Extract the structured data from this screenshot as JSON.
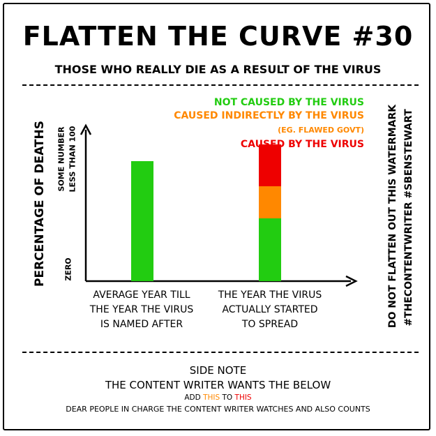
{
  "title": "FLATTEN THE CURVE #30",
  "subtitle": "THOSE WHO REALLY DIE AS A RESULT OF THE VIRUS",
  "legend": {
    "not_caused": "NOT CAUSED BY THE VIRUS",
    "indirect": "CAUSED INDIRECTLY BY THE VIRUS",
    "indirect_example": "(EG. FLAWED GOVT)",
    "caused": "CAUSED BY THE VIRUS"
  },
  "watermark": {
    "line1": "DO NOT FLATTEN OUT THIS WATERMARK",
    "line2": "#THECONTENTWRITER #SBENSTEWART"
  },
  "footer": {
    "side_note": "SIDE NOTE",
    "wants": "THE CONTENT WRITER WANTS THE BELOW",
    "add_prefix": "ADD",
    "add_this1": "THIS",
    "add_to": "TO",
    "add_this2": "THIS",
    "dear": "DEAR PEOPLE IN CHARGE THE CONTENT WRITER WATCHES AND ALSO COUNTS"
  },
  "chart_data": {
    "type": "bar",
    "stacked": true,
    "ylabel": "PERCENTAGE OF DEATHS",
    "y_tick_labels": {
      "top": [
        "SOME NUMBER",
        "LESS THAN 100"
      ],
      "bottom": "ZERO"
    },
    "categories": [
      [
        "AVERAGE YEAR TILL",
        "THE YEAR THE VIRUS",
        "IS NAMED AFTER"
      ],
      [
        "THE YEAR THE VIRUS",
        "ACTUALLY STARTED",
        "TO SPREAD"
      ]
    ],
    "ylim": [
      0,
      100
    ],
    "series": [
      {
        "name": "NOT CAUSED BY THE VIRUS",
        "color": "#22cc11",
        "values": [
          86,
          45
        ]
      },
      {
        "name": "CAUSED INDIRECTLY BY THE VIRUS",
        "color": "#ff8800",
        "values": [
          0,
          23
        ]
      },
      {
        "name": "CAUSED BY THE VIRUS",
        "color": "#ee0000",
        "values": [
          0,
          30
        ]
      }
    ],
    "colors": {
      "green": "#22cc11",
      "orange": "#ff8800",
      "red": "#ee0000"
    }
  }
}
